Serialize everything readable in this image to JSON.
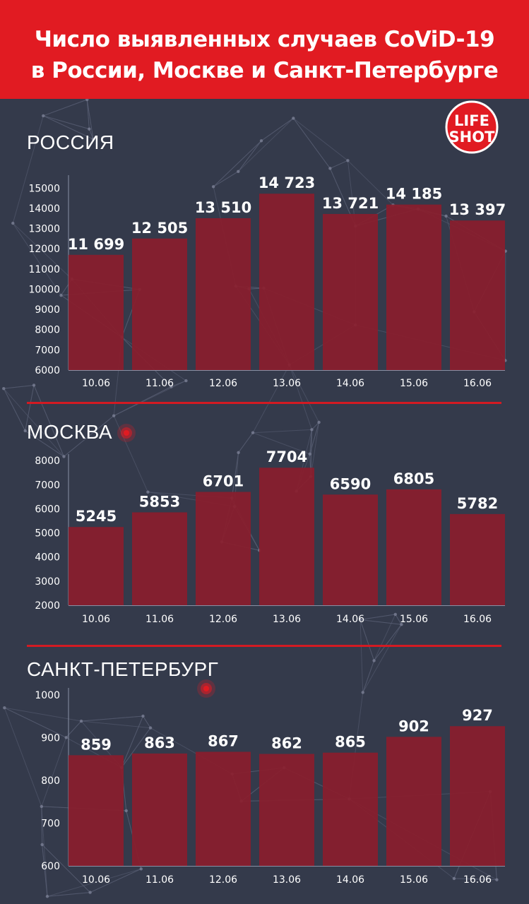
{
  "header": {
    "title_line1": "Число выявленных случаев CoViD-19",
    "title_line2": "в России, Москве и Санкт-Петербурге"
  },
  "logo": {
    "line1": "LIFE",
    "line2": "SHOT"
  },
  "colors": {
    "header": "#e11b22",
    "background": "#343a4b",
    "bar": "#8a1d2c",
    "divider": "#d31a22",
    "text": "#ffffff"
  },
  "chart_data": [
    {
      "type": "bar",
      "title": "РОССИЯ",
      "categories": [
        "10.06",
        "11.06",
        "12.06",
        "13.06",
        "14.06",
        "15.06",
        "16.06"
      ],
      "values": [
        11699,
        12505,
        13510,
        14723,
        13721,
        14185,
        13397
      ],
      "value_labels": [
        "11 699",
        "12 505",
        "13 510",
        "14 723",
        "13 721",
        "14 185",
        "13 397"
      ],
      "yticks": [
        6000,
        7000,
        8000,
        9000,
        10000,
        11000,
        12000,
        13000,
        14000,
        15000
      ],
      "ylim": [
        6000,
        15500
      ]
    },
    {
      "type": "bar",
      "title": "МОСКВА",
      "categories": [
        "10.06",
        "11.06",
        "12.06",
        "13.06",
        "14.06",
        "15.06",
        "16.06"
      ],
      "values": [
        5245,
        5853,
        6701,
        7704,
        6590,
        6805,
        5782
      ],
      "value_labels": [
        "5245",
        "5853",
        "6701",
        "7704",
        "6590",
        "6805",
        "5782"
      ],
      "yticks": [
        2000,
        3000,
        4000,
        5000,
        6000,
        7000,
        8000
      ],
      "ylim": [
        2000,
        8150
      ]
    },
    {
      "type": "bar",
      "title": "САНКТ-ПЕТЕРБУРГ",
      "categories": [
        "10.06",
        "11.06",
        "12.06",
        "13.06",
        "14.06",
        "15.06",
        "16.06"
      ],
      "values": [
        859,
        863,
        867,
        862,
        865,
        902,
        927
      ],
      "value_labels": [
        "859",
        "863",
        "867",
        "862",
        "865",
        "902",
        "927"
      ],
      "yticks": [
        600,
        700,
        800,
        900,
        1000
      ],
      "ylim": [
        600,
        1010
      ]
    }
  ]
}
